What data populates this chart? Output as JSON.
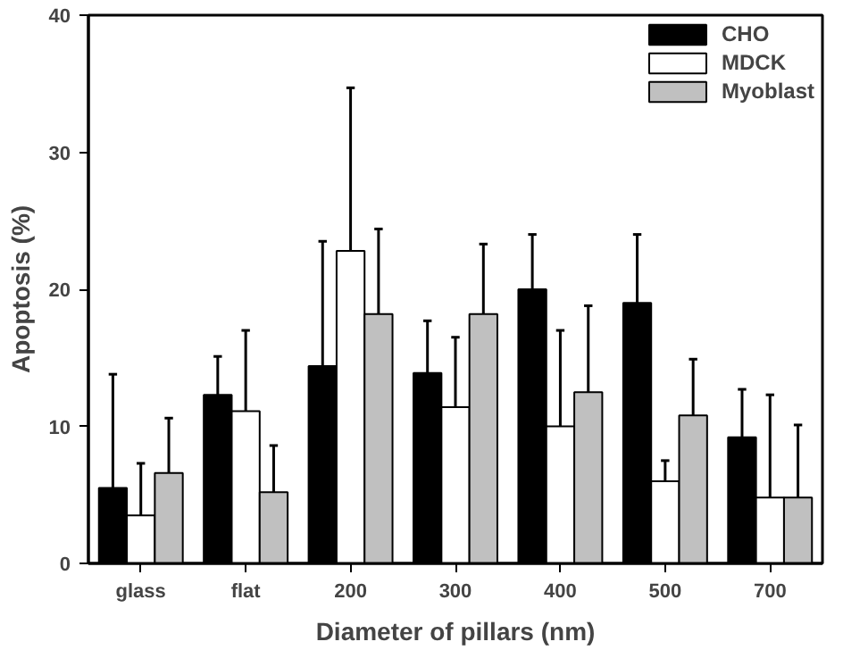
{
  "chart_data": {
    "type": "bar",
    "xlabel": "Diameter of pillars (nm)",
    "ylabel": "Apoptosis (%)",
    "categories": [
      "glass",
      "flat",
      "200",
      "300",
      "400",
      "500",
      "700"
    ],
    "series": [
      {
        "name": "CHO",
        "color": "#000000",
        "values": [
          5.5,
          12.3,
          14.4,
          13.9,
          20.0,
          19.0,
          9.2
        ],
        "errors": [
          [
            5.5,
            13.8
          ],
          [
            12.3,
            15.1
          ],
          [
            14.4,
            23.5
          ],
          [
            13.9,
            17.7
          ],
          [
            20.0,
            24.0
          ],
          [
            19.0,
            24.0
          ],
          [
            9.2,
            12.7
          ]
        ]
      },
      {
        "name": "MDCK",
        "color": "#ffffff",
        "values": [
          3.5,
          11.1,
          22.8,
          11.4,
          10.0,
          6.0,
          4.8
        ],
        "errors": [
          [
            3.5,
            7.3
          ],
          [
            11.1,
            17.0
          ],
          [
            22.8,
            34.7
          ],
          [
            11.4,
            16.5
          ],
          [
            10.0,
            17.0
          ],
          [
            6.0,
            7.5
          ],
          [
            4.8,
            12.3
          ]
        ]
      },
      {
        "name": "Myoblast",
        "color": "#c0c0c0",
        "values": [
          6.6,
          5.2,
          18.2,
          18.2,
          12.5,
          10.8,
          4.8
        ],
        "errors": [
          [
            6.6,
            10.6
          ],
          [
            5.2,
            8.6
          ],
          [
            18.2,
            24.4
          ],
          [
            18.2,
            23.3
          ],
          [
            12.5,
            18.8
          ],
          [
            10.8,
            14.9
          ],
          [
            4.8,
            10.1
          ]
        ]
      }
    ],
    "ylim": [
      0,
      40
    ],
    "yticks": [
      0,
      10,
      20,
      30,
      40
    ],
    "grid": false,
    "legend": "top right"
  }
}
